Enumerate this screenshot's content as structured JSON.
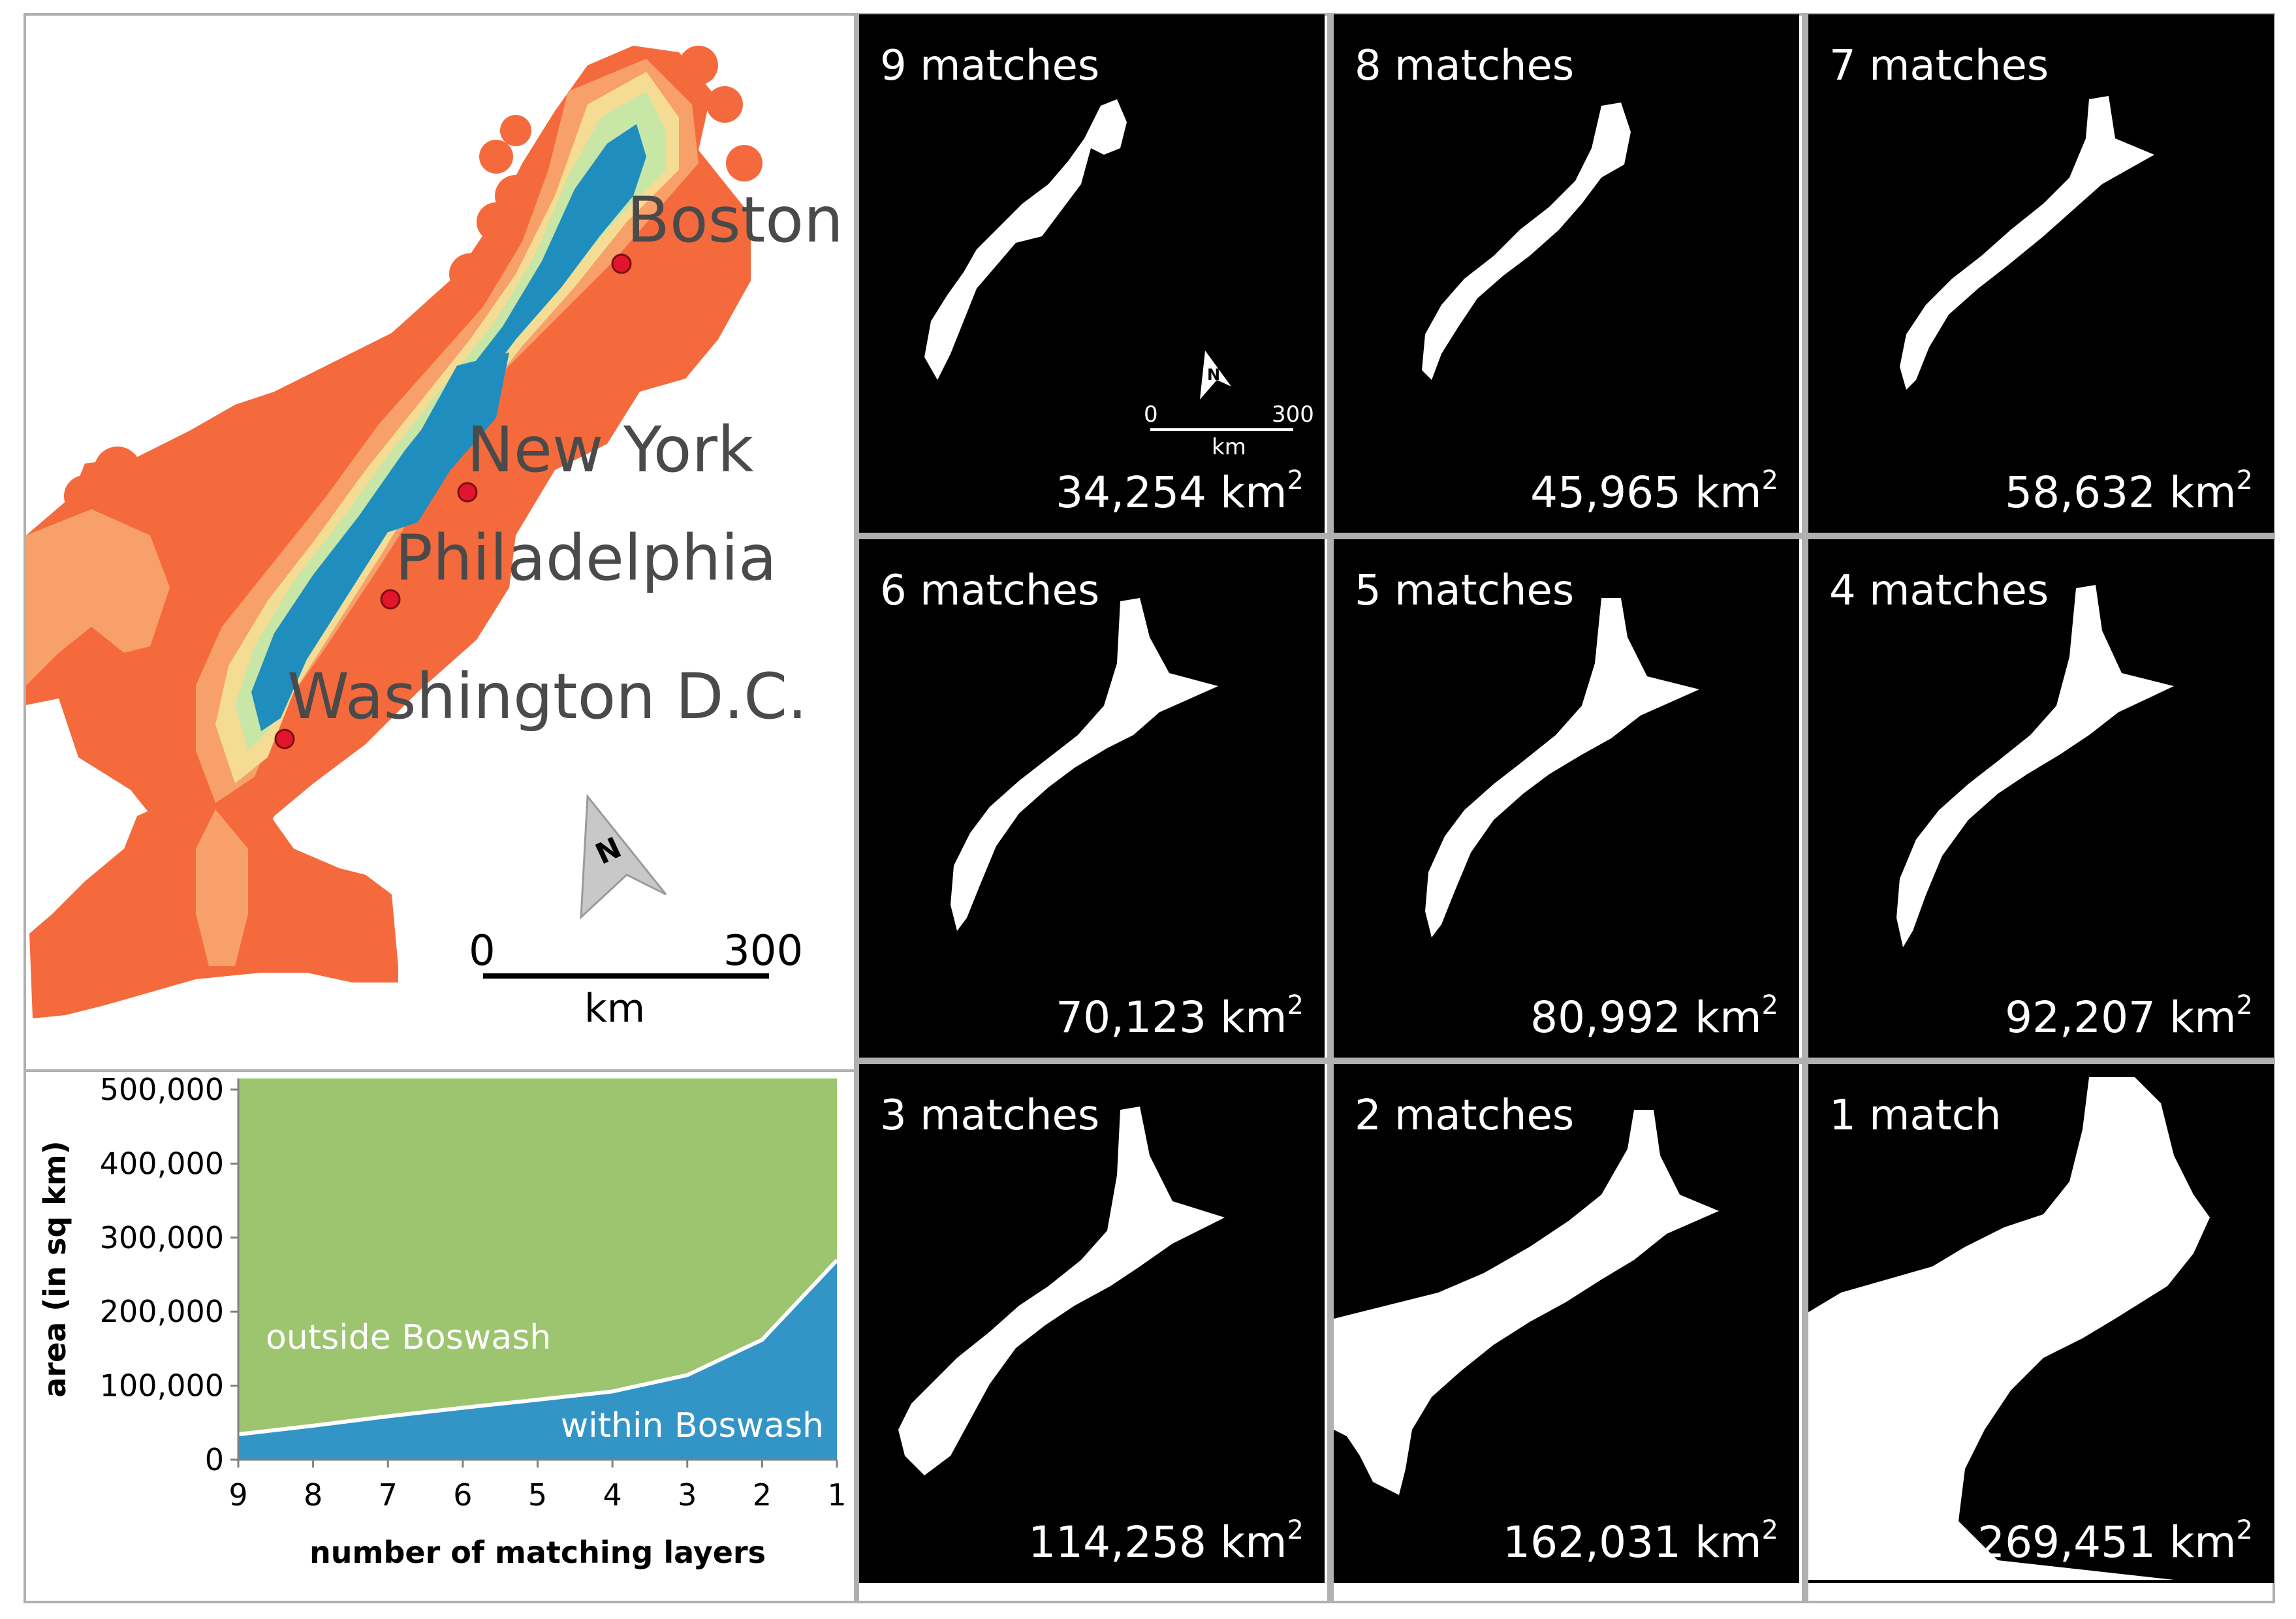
{
  "overview_map": {
    "cities": [
      {
        "name": "Boston"
      },
      {
        "name": "New York"
      },
      {
        "name": "Philadelphia"
      },
      {
        "name": "Washington D.C."
      }
    ],
    "north_arrow": "N",
    "scale": {
      "start": "0",
      "end": "300",
      "unit": "km"
    },
    "colors": {
      "extent": "#F56A3C",
      "outer": "#F7A06A",
      "mid": "#F5DC94",
      "pale": "#C8E6A6",
      "core": "#1F8EBF",
      "city_dot": "#E3142D"
    }
  },
  "panels": [
    {
      "label": "9 matches",
      "area_value": "34,254 km",
      "area_sup": "2",
      "scalebar": {
        "north": "N",
        "start": "0",
        "end": "300",
        "unit": "km"
      }
    },
    {
      "label": "8 matches",
      "area_value": "45,965 km",
      "area_sup": "2"
    },
    {
      "label": "7 matches",
      "area_value": "58,632 km",
      "area_sup": "2"
    },
    {
      "label": "6 matches",
      "area_value": "70,123 km",
      "area_sup": "2"
    },
    {
      "label": "5 matches",
      "area_value": "80,992 km",
      "area_sup": "2"
    },
    {
      "label": "4 matches",
      "area_value": "92,207 km",
      "area_sup": "2"
    },
    {
      "label": "3 matches",
      "area_value": "114,258 km",
      "area_sup": "2"
    },
    {
      "label": "2 matches",
      "area_value": "162,031 km",
      "area_sup": "2"
    },
    {
      "label": "1 match",
      "area_value": "269,451 km",
      "area_sup": "2"
    }
  ],
  "chart_data": {
    "type": "area",
    "x": [
      9,
      8,
      7,
      6,
      5,
      4,
      3,
      2,
      1
    ],
    "series": [
      {
        "name": "within Boswash",
        "values": [
          34254,
          45965,
          58632,
          70123,
          80992,
          92207,
          114258,
          162031,
          269451
        ],
        "color": "#3295C6"
      },
      {
        "name": "outside Boswash",
        "values": [
          480746,
          469035,
          456368,
          444877,
          434008,
          422793,
          400742,
          352969,
          245549
        ],
        "color": "#9DC46E"
      }
    ],
    "xlabel": "number of matching layers",
    "ylabel": "area (in sq km)",
    "xticks": [
      "9",
      "8",
      "7",
      "6",
      "5",
      "4",
      "3",
      "2",
      "1"
    ],
    "yticks": [
      "0",
      "100,000",
      "200,000",
      "300,000",
      "400,000",
      "500,000"
    ],
    "ylim": [
      0,
      515000
    ],
    "xlim": [
      9,
      1
    ]
  }
}
